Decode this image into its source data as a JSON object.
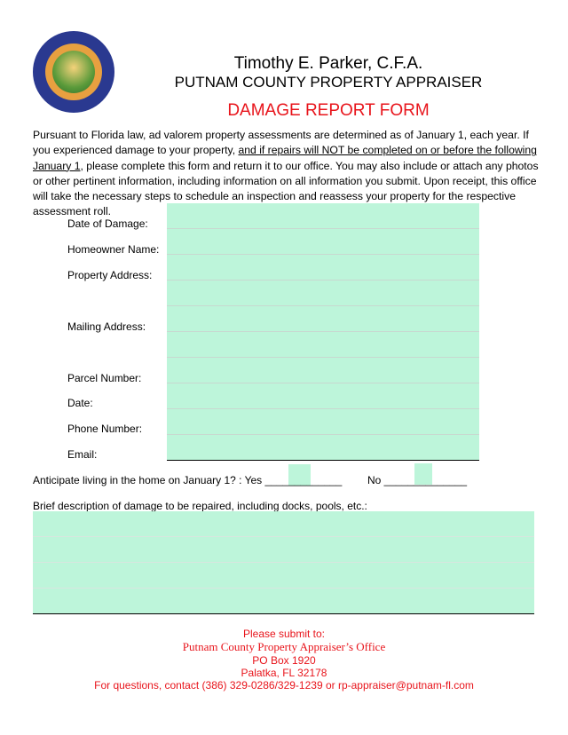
{
  "header": {
    "seal_text": "Putnam County Property Appraiser - Great Seal of the State of Florida - In God We Trust",
    "name": "Timothy E. Parker, C.F.A.",
    "office": "PUTNAM COUNTY PROPERTY APPRAISER",
    "form_title": "DAMAGE REPORT FORM"
  },
  "intro": {
    "part1": "Pursuant to Florida law, ad valorem property assessments are determined as of January 1, each year.  If you experienced damage to your property, ",
    "underlined": "and if repairs will NOT be completed on or before the following January 1",
    "part2": ", please complete this form and return it to our office.  You may also include or attach any photos or other pertinent information, including information on all information you submit.  Upon receipt, this office will take the necessary steps to schedule an inspection and reassess your property for the respective assessment roll."
  },
  "fields": {
    "date_of_damage": "Date of Damage:",
    "homeowner_name": "Homeowner Name:",
    "property_address": "Property Address:",
    "mailing_address": "Mailing Address:",
    "parcel_number": "Parcel Number:",
    "date": "Date:",
    "phone_number": "Phone Number:",
    "email": "Email:"
  },
  "question": {
    "text": "Anticipate living in the home on January 1? :  Yes _____________",
    "no": "No ______________"
  },
  "description_label": "Brief description of damage to be repaired, including docks, pools, etc.:",
  "footer": {
    "line1": "Please submit to:",
    "line2": "Putnam County Property Appraiser’s Office",
    "line3": "PO Box 1920",
    "line4": "Palatka, FL  32178",
    "line5": "For questions, contact (386) 329-0286/329-1239 or rp-appraiser@putnam-fl.com"
  },
  "colors": {
    "field_fill": "#bdf5da",
    "accent": "#e8141b"
  }
}
